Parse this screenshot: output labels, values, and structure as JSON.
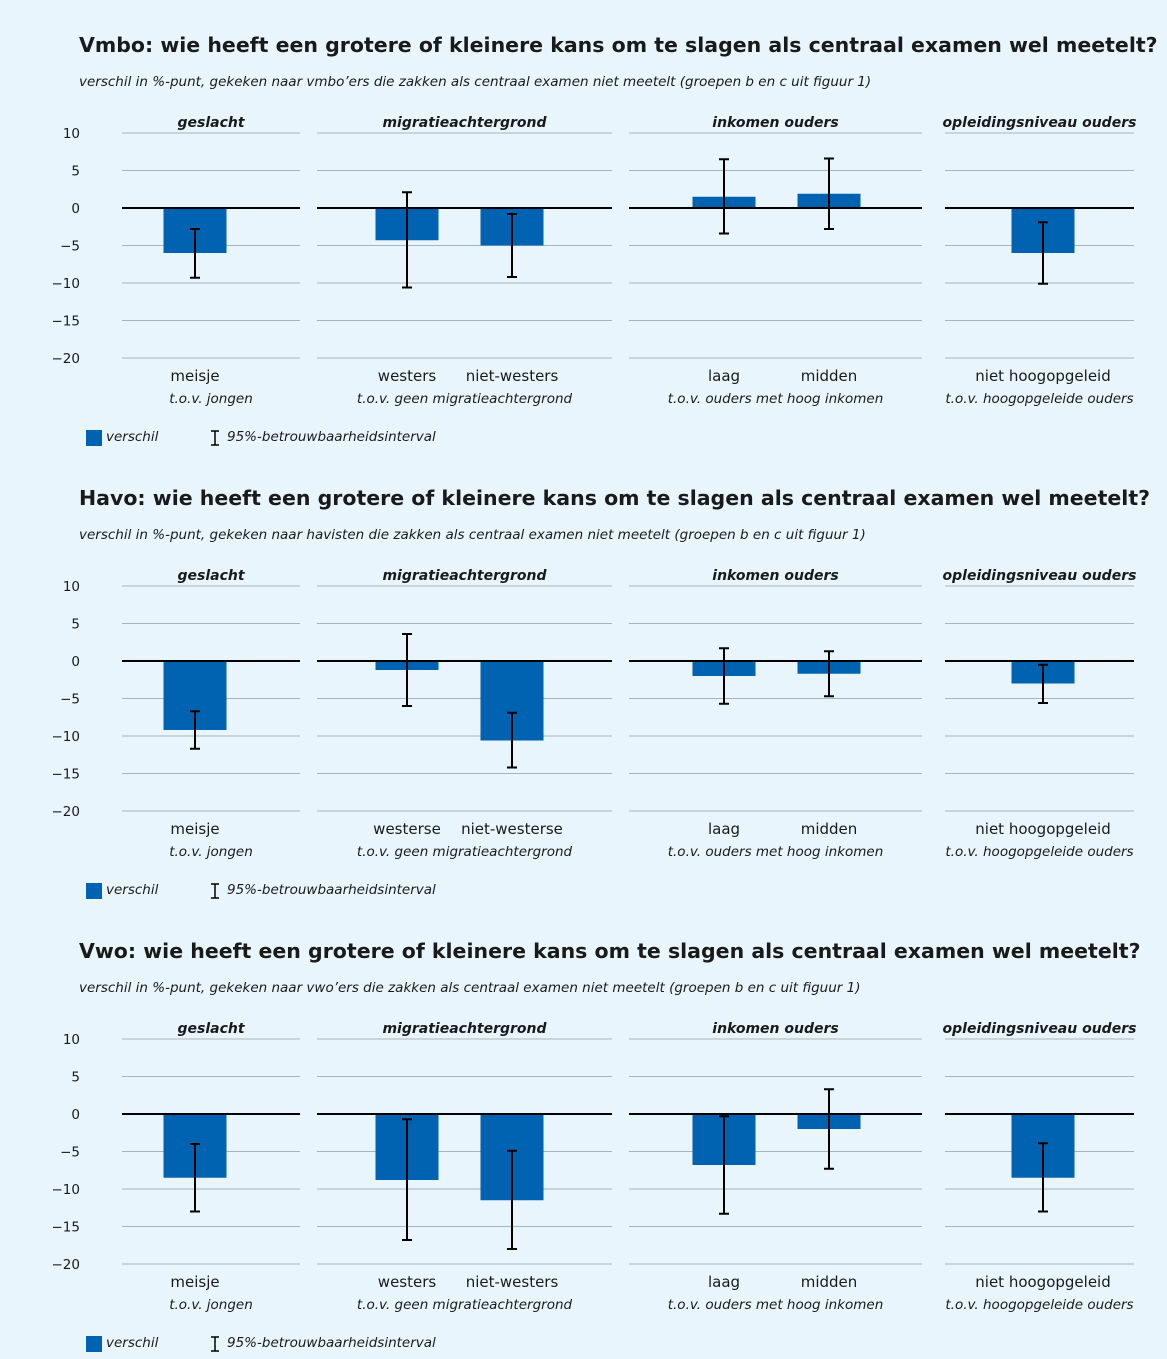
{
  "colors": {
    "bar": "#0063b1",
    "grid": "#a9b3ba",
    "zero": "#000000",
    "errorbar": "#000000",
    "background": "#e9f5fc"
  },
  "chart_data": [
    {
      "type": "bar",
      "title": "Vmbo: wie heeft een grotere of kleinere kans om te slagen als centraal examen wel meetelt?",
      "subtitle": "verschil in %-punt, gekeken naar vmbo’ers die zakken als centraal examen niet meetelt (groepen b en c uit figuur 1)",
      "ylim": [
        -20,
        10
      ],
      "yticks": [
        "10",
        "5",
        "0",
        "−5",
        "−10",
        "−15",
        "−20"
      ],
      "grid": true,
      "legend": {
        "placement": "bottom-left",
        "series_label": "verschil",
        "ci_label": "95%-betrouwbaarheidsinterval"
      },
      "panels": [
        {
          "header": "geslacht",
          "reference": "t.o.v. jongen",
          "bars": [
            {
              "category": "meisje",
              "value": -6.0,
              "ci": [
                -9.3,
                -2.8
              ]
            }
          ]
        },
        {
          "header": "migratieachtergrond",
          "reference": "t.o.v. geen migratieachtergrond",
          "bars": [
            {
              "category": "westers",
              "value": -4.3,
              "ci": [
                -10.6,
                2.1
              ]
            },
            {
              "category": "niet-westers",
              "value": -5.0,
              "ci": [
                -9.2,
                -0.8
              ]
            }
          ]
        },
        {
          "header": "inkomen ouders",
          "reference": "t.o.v. ouders met hoog inkomen",
          "bars": [
            {
              "category": "laag",
              "value": 1.5,
              "ci": [
                -3.4,
                6.5
              ]
            },
            {
              "category": "midden",
              "value": 1.9,
              "ci": [
                -2.8,
                6.6
              ]
            }
          ]
        },
        {
          "header": "opleidingsniveau ouders",
          "reference": "t.o.v. hoogopgeleide ouders",
          "bars": [
            {
              "category": "niet hoogopgeleid",
              "value": -6.0,
              "ci": [
                -10.1,
                -1.9
              ]
            }
          ]
        }
      ]
    },
    {
      "type": "bar",
      "title": "Havo: wie heeft een grotere of kleinere kans om te slagen als centraal examen wel meetelt?",
      "subtitle": "verschil in %-punt, gekeken naar havisten die zakken als centraal examen niet meetelt (groepen b en c uit figuur 1)",
      "ylim": [
        -20,
        10
      ],
      "yticks": [
        "10",
        "5",
        "0",
        "−5",
        "−10",
        "−15",
        "−20"
      ],
      "grid": true,
      "legend": {
        "placement": "bottom-left",
        "series_label": "verschil",
        "ci_label": "95%-betrouwbaarheidsinterval"
      },
      "panels": [
        {
          "header": "geslacht",
          "reference": "t.o.v. jongen",
          "bars": [
            {
              "category": "meisje",
              "value": -9.2,
              "ci": [
                -11.7,
                -6.7
              ]
            }
          ]
        },
        {
          "header": "migratieachtergrond",
          "reference": "t.o.v. geen migratieachtergrond",
          "bars": [
            {
              "category": "westerse",
              "value": -1.2,
              "ci": [
                -6.0,
                3.6
              ]
            },
            {
              "category": "niet-westerse",
              "value": -10.6,
              "ci": [
                -14.2,
                -6.9
              ]
            }
          ]
        },
        {
          "header": "inkomen ouders",
          "reference": "t.o.v. ouders met hoog inkomen",
          "bars": [
            {
              "category": "laag",
              "value": -2.0,
              "ci": [
                -5.7,
                1.7
              ]
            },
            {
              "category": "midden",
              "value": -1.7,
              "ci": [
                -4.7,
                1.3
              ]
            }
          ]
        },
        {
          "header": "opleidingsniveau ouders",
          "reference": "t.o.v. hoogopgeleide ouders",
          "bars": [
            {
              "category": "niet hoogopgeleid",
              "value": -3.0,
              "ci": [
                -5.6,
                -0.5
              ]
            }
          ]
        }
      ]
    },
    {
      "type": "bar",
      "title": "Vwo: wie heeft een grotere of kleinere kans om te slagen als centraal examen wel meetelt?",
      "subtitle": "verschil in %-punt, gekeken naar vwo’ers die zakken als centraal examen niet meetelt (groepen b en c uit figuur 1)",
      "ylim": [
        -20,
        10
      ],
      "yticks": [
        "10",
        "5",
        "0",
        "−5",
        "−10",
        "−15",
        "−20"
      ],
      "grid": true,
      "legend": {
        "placement": "bottom-left",
        "series_label": "verschil",
        "ci_label": "95%-betrouwbaarheidsinterval"
      },
      "panels": [
        {
          "header": "geslacht",
          "reference": "t.o.v. jongen",
          "bars": [
            {
              "category": "meisje",
              "value": -8.5,
              "ci": [
                -13.0,
                -4.0
              ]
            }
          ]
        },
        {
          "header": "migratieachtergrond",
          "reference": "t.o.v. geen migratieachtergrond",
          "bars": [
            {
              "category": "westers",
              "value": -8.8,
              "ci": [
                -16.8,
                -0.7
              ]
            },
            {
              "category": "niet-westers",
              "value": -11.5,
              "ci": [
                -18.0,
                -4.9
              ]
            }
          ]
        },
        {
          "header": "inkomen ouders",
          "reference": "t.o.v. ouders met hoog inkomen",
          "bars": [
            {
              "category": "laag",
              "value": -6.8,
              "ci": [
                -13.3,
                -0.3
              ]
            },
            {
              "category": "midden",
              "value": -2.0,
              "ci": [
                -7.3,
                3.3
              ]
            }
          ]
        },
        {
          "header": "opleidingsniveau ouders",
          "reference": "t.o.v. hoogopgeleide ouders",
          "bars": [
            {
              "category": "niet hoogopgeleid",
              "value": -8.5,
              "ci": [
                -13.0,
                -3.9
              ]
            }
          ]
        }
      ]
    }
  ]
}
